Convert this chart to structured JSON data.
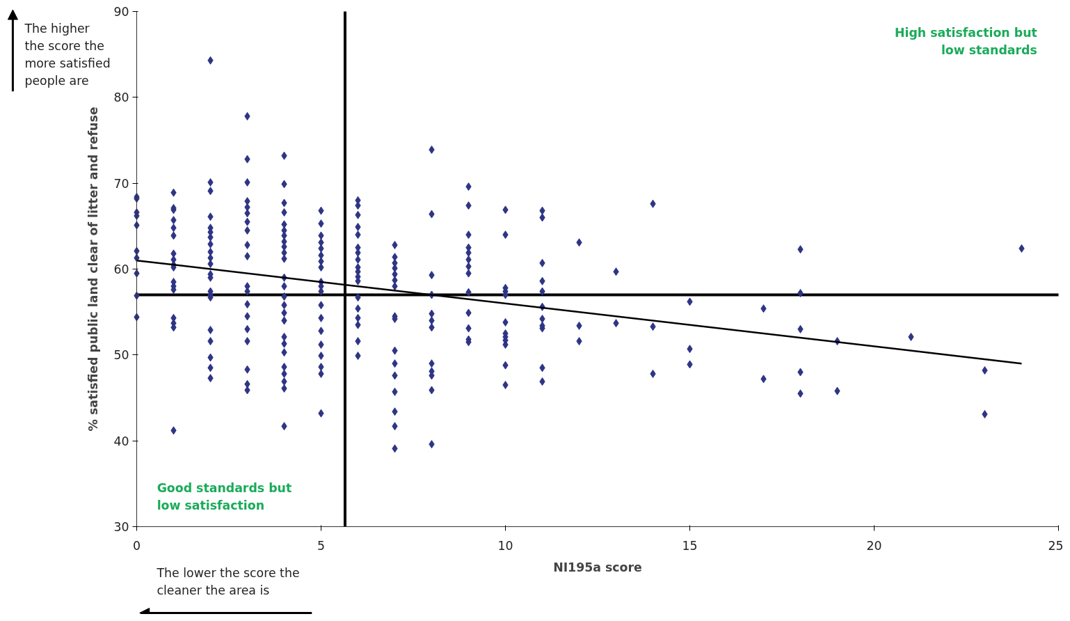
{
  "chart_data": {
    "type": "scatter",
    "xlabel": "NI195a score",
    "ylabel": "% satisfied public land clear of litter and refuse",
    "xlim": [
      0,
      25
    ],
    "ylim": [
      30,
      90
    ],
    "xticks": [
      0,
      5,
      10,
      15,
      20,
      25
    ],
    "yticks": [
      30,
      40,
      50,
      60,
      70,
      80,
      90
    ],
    "marker": "diamond",
    "series": [
      {
        "color": "#2e3585",
        "x": [
          0,
          0,
          0,
          0,
          0,
          0,
          0,
          0,
          0,
          0,
          1,
          1,
          1,
          1,
          1,
          1,
          1,
          1,
          1,
          1,
          1,
          1,
          1,
          1,
          1,
          1,
          1,
          2,
          2,
          2,
          2,
          2,
          2,
          2,
          2,
          2,
          2,
          2,
          2,
          2,
          2,
          2,
          2,
          2,
          2,
          2,
          2,
          2,
          3,
          3,
          3,
          3,
          3,
          3,
          3,
          3,
          3,
          3,
          3,
          3,
          3,
          3,
          3,
          3,
          3,
          3,
          3,
          4,
          4,
          4,
          4,
          4,
          4,
          4,
          4,
          4,
          4,
          4,
          4,
          4,
          4,
          4,
          4,
          4,
          4,
          4,
          4,
          4,
          4,
          4,
          4,
          4,
          5,
          5,
          5,
          5,
          5,
          5,
          5,
          5,
          5,
          5,
          5,
          5,
          5,
          5,
          5,
          5,
          5,
          5,
          5,
          6,
          6,
          6,
          6,
          6,
          6,
          6,
          6,
          6,
          6,
          6,
          6,
          6,
          6,
          6,
          6,
          6,
          6,
          7,
          7,
          7,
          7,
          7,
          7,
          7,
          7,
          7,
          7,
          7,
          7,
          7,
          7,
          7,
          7,
          8,
          8,
          8,
          8,
          8,
          8,
          8,
          8,
          8,
          8,
          8,
          8,
          9,
          9,
          9,
          9,
          9,
          9,
          9,
          9,
          9,
          9,
          9,
          9,
          9,
          10,
          10,
          10,
          10,
          10,
          10,
          10,
          10,
          10,
          10,
          10,
          10,
          11,
          11,
          11,
          11,
          11,
          11,
          11,
          11,
          11,
          11,
          11,
          12,
          12,
          12,
          13,
          13,
          14,
          14,
          14,
          15,
          15,
          15,
          17,
          17,
          18,
          18,
          18,
          18,
          18,
          19,
          19,
          21,
          23,
          23,
          24
        ],
        "values": [
          68.4,
          66.6,
          66.2,
          65.1,
          62.1,
          61.3,
          59.5,
          56.9,
          54.4,
          68.2,
          68.9,
          67.1,
          66.9,
          65.7,
          64.8,
          63.9,
          61.8,
          61.1,
          60.5,
          60.2,
          58.5,
          58.0,
          57.6,
          54.3,
          53.7,
          53.2,
          41.2,
          84.3,
          70.1,
          69.1,
          66.1,
          64.8,
          64.3,
          63.7,
          62.9,
          62.0,
          61.3,
          60.6,
          59.4,
          59.0,
          57.4,
          57.0,
          56.7,
          52.9,
          51.6,
          49.7,
          48.5,
          47.3,
          77.8,
          72.8,
          70.1,
          67.9,
          67.2,
          66.5,
          65.5,
          64.5,
          62.8,
          61.5,
          58.0,
          57.4,
          55.9,
          54.5,
          53.0,
          51.6,
          48.3,
          46.6,
          45.9,
          73.2,
          69.9,
          67.7,
          66.6,
          65.2,
          64.5,
          63.9,
          63.2,
          62.6,
          61.9,
          61.2,
          59.0,
          58.0,
          56.8,
          55.8,
          54.9,
          54.0,
          52.1,
          51.3,
          50.3,
          48.6,
          47.8,
          46.9,
          46.1,
          41.7,
          66.8,
          65.3,
          63.9,
          63.1,
          62.4,
          61.6,
          60.9,
          60.2,
          58.5,
          58.0,
          57.4,
          55.8,
          54.3,
          52.8,
          51.2,
          49.9,
          48.6,
          47.8,
          43.2,
          68.0,
          67.4,
          66.3,
          64.9,
          64.0,
          62.5,
          61.9,
          61.1,
          60.2,
          59.7,
          59.1,
          58.6,
          56.7,
          55.4,
          54.3,
          53.5,
          51.6,
          49.9,
          62.8,
          61.4,
          60.7,
          60.1,
          59.4,
          58.7,
          58.0,
          54.5,
          54.2,
          50.5,
          49.0,
          47.6,
          45.7,
          43.4,
          41.7,
          39.1,
          73.9,
          66.4,
          59.3,
          57.0,
          54.8,
          54.0,
          53.2,
          49.0,
          48.1,
          47.6,
          45.9,
          39.6,
          69.6,
          67.4,
          64.0,
          62.5,
          61.9,
          61.1,
          60.3,
          59.5,
          57.3,
          54.9,
          53.1,
          51.8,
          51.5,
          66.9,
          64.0,
          57.8,
          57.4,
          57.0,
          53.8,
          52.5,
          52.1,
          51.7,
          51.2,
          48.8,
          46.5,
          66.8,
          66.0,
          60.7,
          58.6,
          57.4,
          55.6,
          54.2,
          53.4,
          53.1,
          48.5,
          46.9,
          63.1,
          53.4,
          51.6,
          59.7,
          53.7,
          67.6,
          53.3,
          47.8,
          56.2,
          50.7,
          48.9,
          55.4,
          47.2,
          62.3,
          57.2,
          53.0,
          48.0,
          45.5,
          51.6,
          45.8,
          52.1,
          48.2,
          43.1,
          62.4
        ]
      },
      {
        "type": "line",
        "color": "#000000",
        "marker": "none",
        "x": [
          0,
          24
        ],
        "values": [
          61.0,
          49.0
        ]
      }
    ],
    "ref_lines": [
      {
        "axis": "x",
        "value": 5.65,
        "color": "#000000"
      },
      {
        "axis": "y",
        "value": 57,
        "color": "#000000"
      }
    ],
    "annotations": [
      "The higher\nthe score the\nmore satisfied\npeople are",
      "High satisfaction but\nlow standards",
      "Good standards but\nlow satisfaction",
      "The lower the score the\ncleaner the area is"
    ]
  }
}
